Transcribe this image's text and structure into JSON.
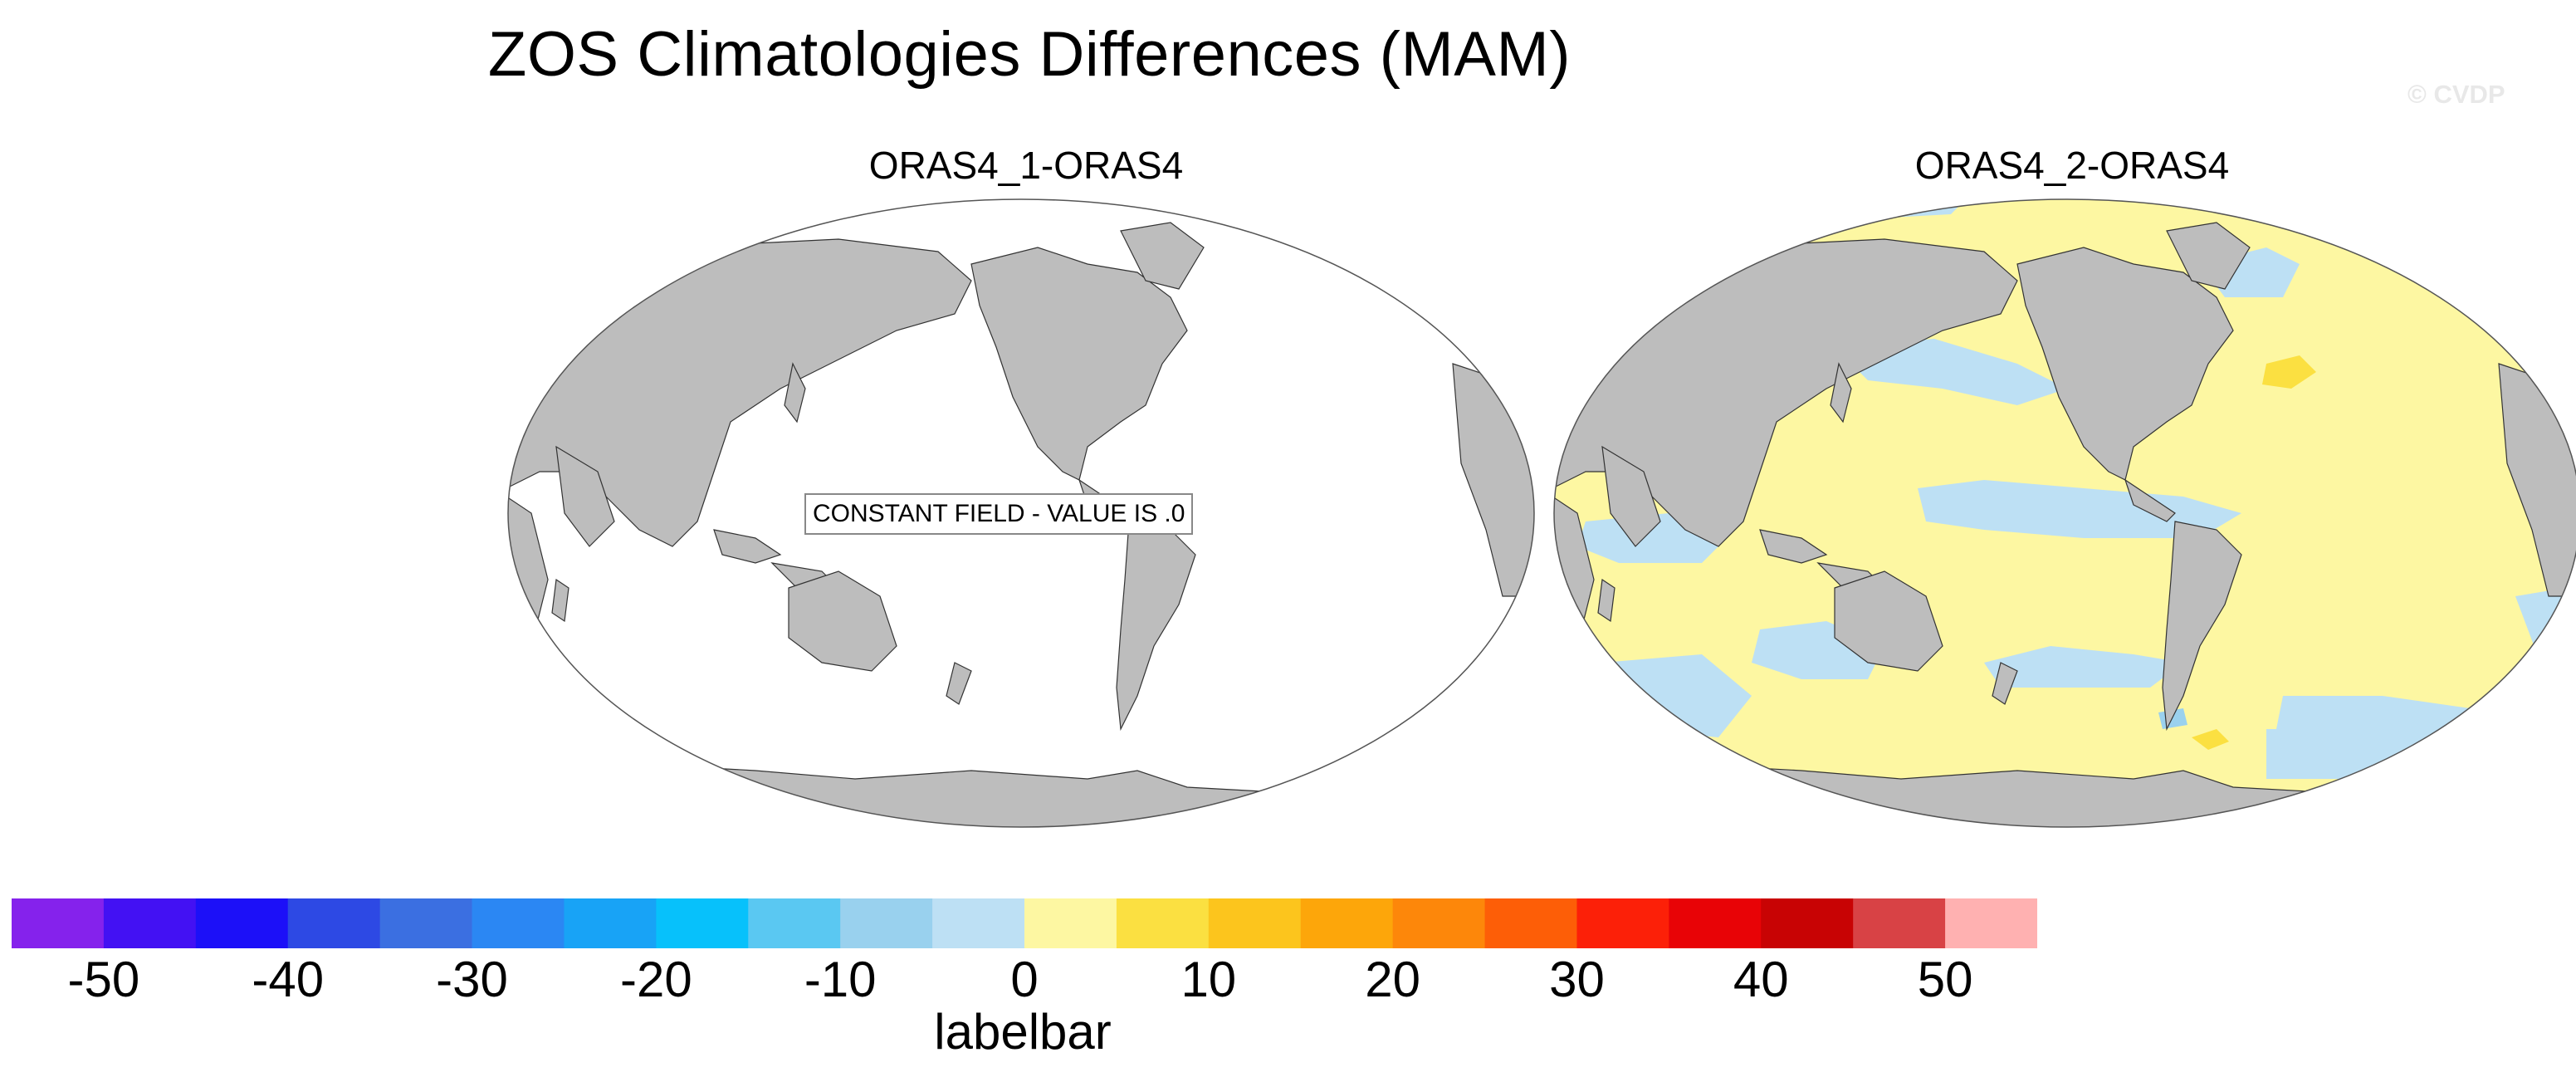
{
  "title": "ZOS Climatologies Differences (MAM)",
  "watermark": "© CVDP",
  "panels": [
    {
      "title": "ORAS4_1-ORAS4",
      "note": "CONSTANT FIELD - VALUE IS .0"
    },
    {
      "title": "ORAS4_2-ORAS4"
    }
  ],
  "colors": {
    "land": "#bdbdbd",
    "ocean_blank": "#ffffff",
    "positive_small": "#fdf7a2",
    "negative_small": "#bde0f4",
    "positive_mid": "#fbe041",
    "negative_mid": "#9ad1ee"
  },
  "labelbar": {
    "title": "labelbar",
    "colors": [
      "#8522ec",
      "#4311f3",
      "#1c10f8",
      "#2d49e4",
      "#3b6fe1",
      "#2b87f3",
      "#18a3f6",
      "#07c1fb",
      "#5ac8f2",
      "#99d1ee",
      "#bde0f4",
      "#fdf7a2",
      "#fbe041",
      "#fcc51d",
      "#fda60a",
      "#fd870a",
      "#fd5e07",
      "#fc2008",
      "#e80306",
      "#c80304",
      "#d84245",
      "#ffb1b1"
    ],
    "ticks": [
      "-50",
      "-40",
      "-30",
      "-20",
      "-10",
      "0",
      "10",
      "20",
      "30",
      "40",
      "50"
    ]
  }
}
